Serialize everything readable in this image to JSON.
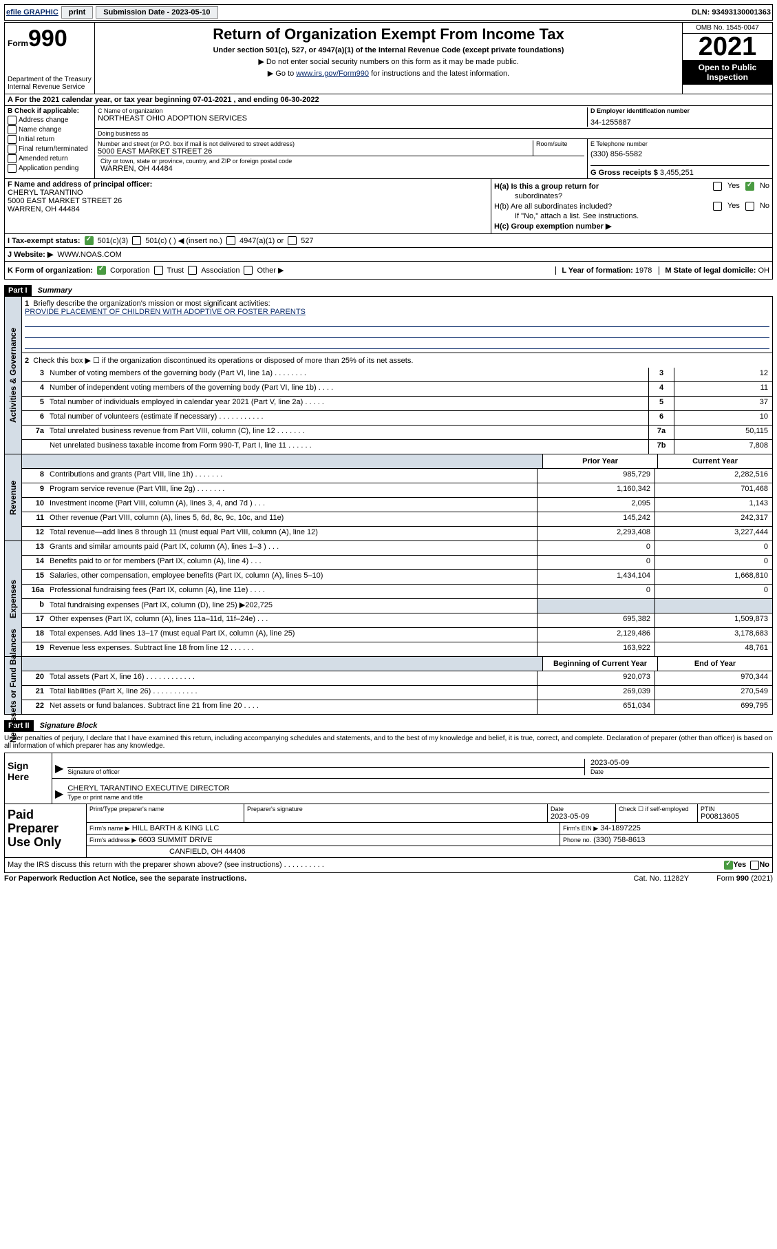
{
  "topbar": {
    "efile": "efile GRAPHIC",
    "print": "print",
    "subdate_label": "Submission Date - 2023-05-10",
    "dln_label": "DLN: 93493130001363"
  },
  "header": {
    "form_prefix": "Form",
    "form_number": "990",
    "dept": "Department of the Treasury Internal Revenue Service",
    "title": "Return of Organization Exempt From Income Tax",
    "subtitle": "Under section 501(c), 527, or 4947(a)(1) of the Internal Revenue Code (except private foundations)",
    "note1": "▶ Do not enter social security numbers on this form as it may be made public.",
    "note2_pre": "▶ Go to ",
    "note2_link": "www.irs.gov/Form990",
    "note2_post": " for instructions and the latest information.",
    "omb": "OMB No. 1545-0047",
    "year": "2021",
    "open_pub1": "Open to Public",
    "open_pub2": "Inspection"
  },
  "rowA": "A  For the 2021 calendar year, or tax year beginning 07-01-2021   , and ending 06-30-2022",
  "boxB": {
    "label": "B Check if applicable:",
    "items": [
      "Address change",
      "Name change",
      "Initial return",
      "Final return/terminated",
      "Amended return",
      "Application pending"
    ]
  },
  "boxC": {
    "name_label": "C Name of organization",
    "name": "NORTHEAST OHIO ADOPTION SERVICES",
    "dba_label": "Doing business as",
    "addr_label": "Number and street (or P.O. box if mail is not delivered to street address)",
    "room_label": "Room/suite",
    "addr": "5000 EAST MARKET STREET 26",
    "city_label": "City or town, state or province, country, and ZIP or foreign postal code",
    "city": "WARREN, OH  44484"
  },
  "boxD": {
    "label": "D Employer identification number",
    "val": "34-1255887"
  },
  "boxE": {
    "label": "E Telephone number",
    "val": "(330) 856-5582"
  },
  "boxG": {
    "label": "G Gross receipts $",
    "val": "3,455,251"
  },
  "boxF": {
    "label": "F  Name and address of principal officer:",
    "name": "CHERYL TARANTINO",
    "addr": "5000 EAST MARKET STREET 26",
    "city": "WARREN, OH  44484"
  },
  "boxH": {
    "a_label": "H(a)  Is this a group return for",
    "a_label2": "subordinates?",
    "b_label": "H(b)  Are all subordinates included?",
    "b_note": "If \"No,\" attach a list. See instructions.",
    "c_label": "H(c)  Group exemption number ▶",
    "yes": "Yes",
    "no": "No"
  },
  "rowI": {
    "label": "I    Tax-exempt status:",
    "opts": [
      "501(c)(3)",
      "501(c) (  ) ◀ (insert no.)",
      "4947(a)(1) or",
      "527"
    ]
  },
  "rowJ": {
    "label": "J    Website: ▶",
    "val": "WWW.NOAS.COM"
  },
  "rowK": {
    "label": "K Form of organization:",
    "opts": [
      "Corporation",
      "Trust",
      "Association",
      "Other ▶"
    ],
    "L_label": "L Year of formation:",
    "L_val": "1978",
    "M_label": "M State of legal domicile:",
    "M_val": "OH"
  },
  "part1": {
    "bar": "Part I",
    "title": "Summary"
  },
  "summary": {
    "line1": "Briefly describe the organization's mission or most significant activities:",
    "line1_val": "PROVIDE PLACEMENT OF CHILDREN WITH ADOPTIVE OR FOSTER PARENTS",
    "line2": "Check this box ▶ ☐  if the organization discontinued its operations or disposed of more than 25% of its net assets.",
    "rows_top": [
      {
        "n": "3",
        "d": "Number of voting members of the governing body (Part VI, line 1a)  .  .  .  .  .  .  .  .",
        "b": "3",
        "v": "12"
      },
      {
        "n": "4",
        "d": "Number of independent voting members of the governing body (Part VI, line 1b)  .  .  .  .",
        "b": "4",
        "v": "11"
      },
      {
        "n": "5",
        "d": "Total number of individuals employed in calendar year 2021 (Part V, line 2a)  .  .  .  .  .",
        "b": "5",
        "v": "37"
      },
      {
        "n": "6",
        "d": "Total number of volunteers (estimate if necessary)  .  .  .  .  .  .  .  .  .  .  .",
        "b": "6",
        "v": "10"
      },
      {
        "n": "7a",
        "d": "Total unrelated business revenue from Part VIII, column (C), line 12  .  .  .  .  .  .  .",
        "b": "7a",
        "v": "50,115"
      },
      {
        "n": "",
        "d": "Net unrelated business taxable income from Form 990-T, Part I, line 11  .  .  .  .  .  .",
        "b": "7b",
        "v": "7,808"
      }
    ],
    "head_prior": "Prior Year",
    "head_curr": "Current Year",
    "rows_rev": [
      {
        "n": "8",
        "d": "Contributions and grants (Part VIII, line 1h)  .  .  .  .  .  .  .",
        "p": "985,729",
        "c": "2,282,516"
      },
      {
        "n": "9",
        "d": "Program service revenue (Part VIII, line 2g)  .  .  .  .  .  .  .",
        "p": "1,160,342",
        "c": "701,468"
      },
      {
        "n": "10",
        "d": "Investment income (Part VIII, column (A), lines 3, 4, and 7d )  .  .  .",
        "p": "2,095",
        "c": "1,143"
      },
      {
        "n": "11",
        "d": "Other revenue (Part VIII, column (A), lines 5, 6d, 8c, 9c, 10c, and 11e)",
        "p": "145,242",
        "c": "242,317"
      },
      {
        "n": "12",
        "d": "Total revenue—add lines 8 through 11 (must equal Part VIII, column (A), line 12)",
        "p": "2,293,408",
        "c": "3,227,444"
      }
    ],
    "rows_exp": [
      {
        "n": "13",
        "d": "Grants and similar amounts paid (Part IX, column (A), lines 1–3 )  .  .  .",
        "p": "0",
        "c": "0"
      },
      {
        "n": "14",
        "d": "Benefits paid to or for members (Part IX, column (A), line 4)  .  .  .",
        "p": "0",
        "c": "0"
      },
      {
        "n": "15",
        "d": "Salaries, other compensation, employee benefits (Part IX, column (A), lines 5–10)",
        "p": "1,434,104",
        "c": "1,668,810"
      },
      {
        "n": "16a",
        "d": "Professional fundraising fees (Part IX, column (A), line 11e)  .  .  .  .",
        "p": "0",
        "c": "0"
      },
      {
        "n": "b",
        "d": "Total fundraising expenses (Part IX, column (D), line 25) ▶202,725",
        "p": "",
        "c": "",
        "shade": true
      },
      {
        "n": "17",
        "d": "Other expenses (Part IX, column (A), lines 11a–11d, 11f–24e)  .  .  .",
        "p": "695,382",
        "c": "1,509,873"
      },
      {
        "n": "18",
        "d": "Total expenses. Add lines 13–17 (must equal Part IX, column (A), line 25)",
        "p": "2,129,486",
        "c": "3,178,683"
      },
      {
        "n": "19",
        "d": "Revenue less expenses. Subtract line 18 from line 12  .  .  .  .  .  .",
        "p": "163,922",
        "c": "48,761"
      }
    ],
    "head_beg": "Beginning of Current Year",
    "head_end": "End of Year",
    "rows_net": [
      {
        "n": "20",
        "d": "Total assets (Part X, line 16)  .  .  .  .  .  .  .  .  .  .  .  .",
        "p": "920,073",
        "c": "970,344"
      },
      {
        "n": "21",
        "d": "Total liabilities (Part X, line 26)  .  .  .  .  .  .  .  .  .  .  .",
        "p": "269,039",
        "c": "270,549"
      },
      {
        "n": "22",
        "d": "Net assets or fund balances. Subtract line 21 from line 20  .  .  .  .",
        "p": "651,034",
        "c": "699,795"
      }
    ]
  },
  "vert": {
    "gov": "Activities & Governance",
    "rev": "Revenue",
    "exp": "Expenses",
    "net": "Net Assets or Fund Balances"
  },
  "part2": {
    "bar": "Part II",
    "title": "Signature Block"
  },
  "sig": {
    "decl": "Under penalties of perjury, I declare that I have examined this return, including accompanying schedules and statements, and to the best of my knowledge and belief, it is true, correct, and complete. Declaration of preparer (other than officer) is based on all information of which preparer has any knowledge.",
    "sign_here": "Sign Here",
    "sig_officer": "Signature of officer",
    "date_label": "Date",
    "date": "2023-05-09",
    "name": "CHERYL TARANTINO  EXECUTIVE DIRECTOR",
    "name_label": "Type or print name and title"
  },
  "prep": {
    "left": "Paid Preparer Use Only",
    "h1": "Print/Type preparer's name",
    "h2": "Preparer's signature",
    "h3": "Date",
    "h3v": "2023-05-09",
    "h4": "Check ☐ if self-employed",
    "h5": "PTIN",
    "h5v": "P00813605",
    "firm_label": "Firm's name   ▶",
    "firm": "HILL BARTH & KING LLC",
    "ein_label": "Firm's EIN ▶",
    "ein": "34-1897225",
    "addr_label": "Firm's address ▶",
    "addr": "6603 SUMMIT DRIVE",
    "addr2": "CANFIELD, OH  44406",
    "phone_label": "Phone no.",
    "phone": "(330) 758-8613"
  },
  "footer": {
    "may": "May the IRS discuss this return with the preparer shown above? (see instructions)  .  .  .  .  .  .  .  .  .  .",
    "yes": "Yes",
    "no": "No",
    "pra": "For Paperwork Reduction Act Notice, see the separate instructions.",
    "cat": "Cat. No. 11282Y",
    "form": "Form 990 (2021)"
  }
}
